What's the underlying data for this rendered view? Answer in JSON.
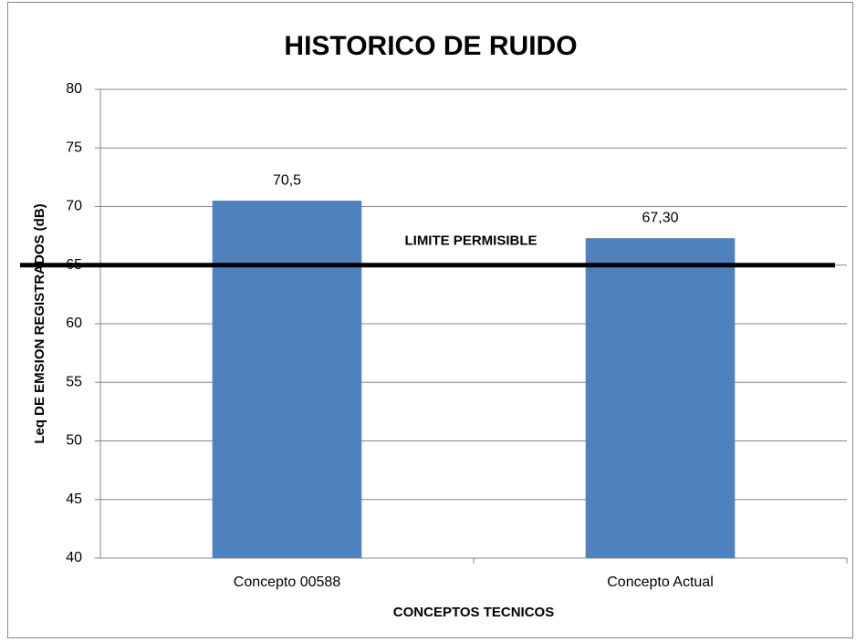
{
  "chart_data": {
    "type": "bar",
    "title": "HISTORICO DE RUIDO",
    "x_label": "CONCEPTOS TECNICOS",
    "y_label": "Leq DE EMSION REGISTRADOS (dB)",
    "categories": [
      "Concepto 00588",
      "Concepto Actual"
    ],
    "values": [
      70.5,
      67.3
    ],
    "value_labels": [
      "70,5",
      "67,30"
    ],
    "color": "#4f81bd",
    "ylim": [
      40,
      80
    ],
    "yticks": [
      40,
      45,
      50,
      55,
      60,
      65,
      70,
      75,
      80
    ],
    "grid": true,
    "reference_line": {
      "value": 65,
      "label": "LIMITE PERMISIBLE",
      "color": "#000000"
    }
  }
}
